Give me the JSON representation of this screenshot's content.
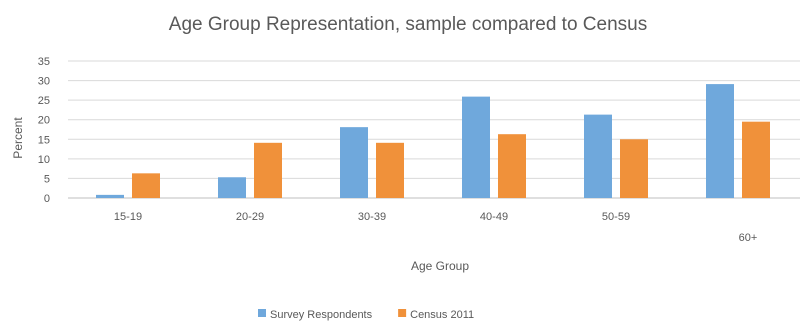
{
  "chart_data": {
    "type": "bar",
    "title": "Age Group Representation, sample compared to Census",
    "xlabel": "Age Group",
    "ylabel": "Percent",
    "categories": [
      "15-19",
      "20-29",
      "30-39",
      "40-49",
      "50-59",
      "60+"
    ],
    "series": [
      {
        "name": "Survey Respondents",
        "color": "#6fa8dc",
        "values": [
          0.8,
          5.3,
          18.1,
          25.9,
          21.3,
          29.1
        ]
      },
      {
        "name": "Census 2011",
        "color": "#f0913a",
        "values": [
          6.3,
          14.1,
          14.1,
          16.3,
          15.0,
          19.5
        ]
      }
    ],
    "ylim": [
      0,
      35
    ],
    "yticks": [
      0,
      5,
      10,
      15,
      20,
      25,
      30,
      35
    ],
    "grid": true,
    "legend_position": "bottom-center"
  }
}
